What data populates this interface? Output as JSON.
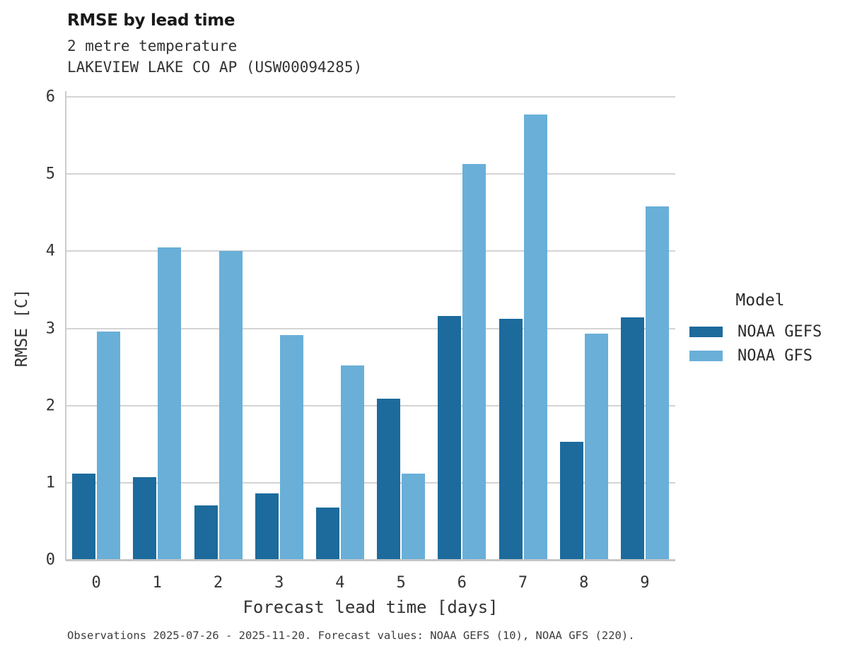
{
  "header": {
    "title": "RMSE by lead time",
    "subtitle_line1": "2 metre temperature",
    "subtitle_line2": "LAKEVIEW LAKE CO AP (USW00094285)"
  },
  "chart_data": {
    "type": "bar",
    "title": "RMSE by lead time",
    "subtitle": [
      "2 metre temperature",
      "LAKEVIEW LAKE CO AP (USW00094285)"
    ],
    "categories": [
      "0",
      "1",
      "2",
      "3",
      "4",
      "5",
      "6",
      "7",
      "8",
      "9"
    ],
    "series": [
      {
        "name": "NOAA GEFS",
        "color": "#1c6b9c",
        "values": [
          1.12,
          1.07,
          0.71,
          0.86,
          0.68,
          2.09,
          3.16,
          3.12,
          1.53,
          3.14
        ]
      },
      {
        "name": "NOAA GFS",
        "color": "#69afd8",
        "values": [
          2.96,
          4.05,
          4.0,
          2.91,
          2.52,
          1.12,
          5.13,
          5.77,
          2.93,
          4.58
        ]
      }
    ],
    "xlabel": "Forecast lead time [days]",
    "ylabel": "RMSE [C]",
    "ylim": [
      0,
      6
    ],
    "yticks": [
      0,
      1,
      2,
      3,
      4,
      5,
      6
    ],
    "grid": true,
    "legend_position": "right"
  },
  "legend": {
    "title": "Model",
    "items": [
      {
        "label": "NOAA GEFS"
      },
      {
        "label": "NOAA GFS"
      }
    ]
  },
  "caption": "Observations 2025-07-26 - 2025-11-20. Forecast values: NOAA GEFS (10), NOAA GFS (220)."
}
